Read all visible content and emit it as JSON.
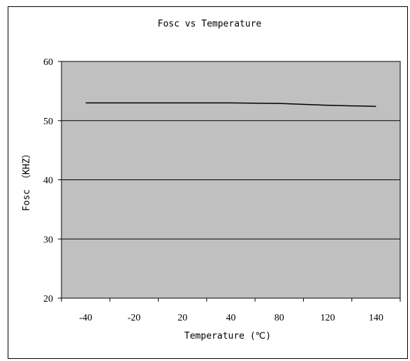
{
  "chart_data": {
    "type": "line",
    "title": "Fosc vs Temperature",
    "xlabel": "Temperature (℃)",
    "ylabel": "Fosc （KHZ）",
    "x_tick_labels": [
      "-40",
      "-20",
      "20",
      "40",
      "80",
      "120",
      "140"
    ],
    "y_ticks": [
      20,
      30,
      40,
      50,
      60
    ],
    "ylim": [
      20,
      60
    ],
    "grid": "horizontal",
    "plot_background": "#c0c0c0",
    "line_color": "#000000",
    "series": [
      {
        "x": [
          -40,
          -20,
          20,
          40,
          80,
          120,
          140
        ],
        "values": [
          53.0,
          53.0,
          53.0,
          53.0,
          52.9,
          52.6,
          52.4
        ]
      }
    ]
  }
}
